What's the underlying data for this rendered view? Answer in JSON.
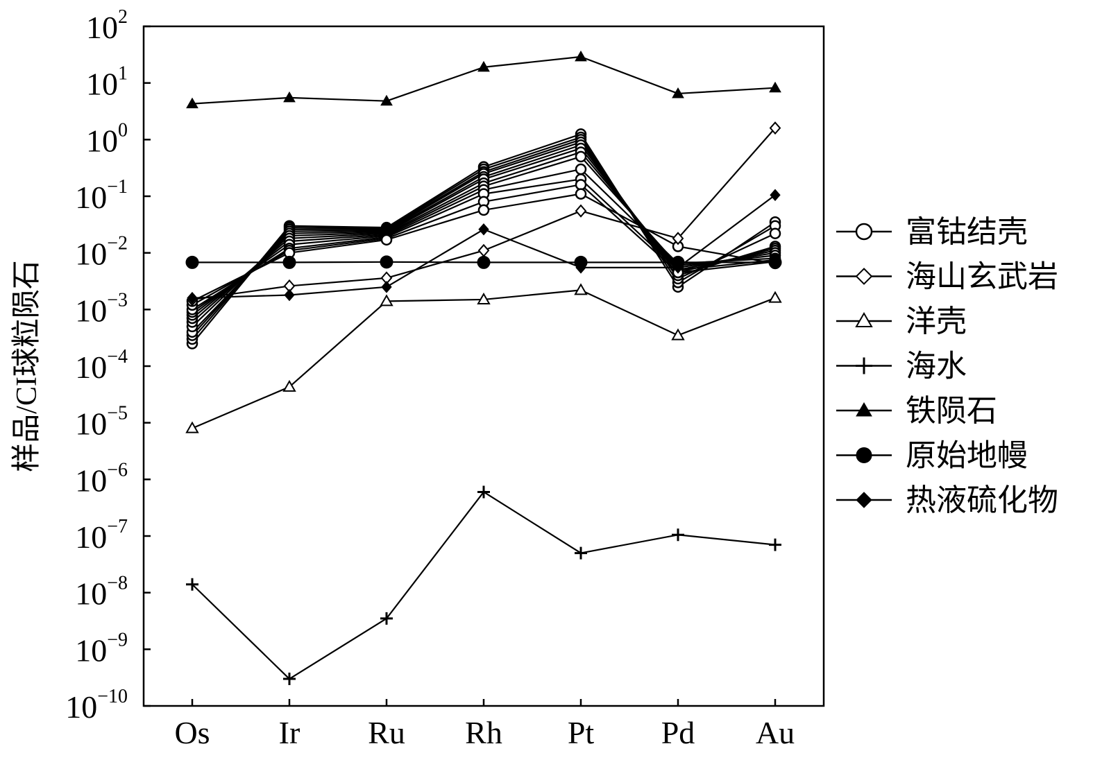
{
  "chart_data": {
    "type": "line",
    "categories": [
      "Os",
      "Ir",
      "Ru",
      "Rh",
      "Pt",
      "Pd",
      "Au"
    ],
    "ylabel": "样品/CI球粒陨石",
    "yscale": "log",
    "ylim": [
      1e-10,
      100
    ],
    "yticks": [
      {
        "base": "10",
        "exp": "2"
      },
      {
        "base": "10",
        "exp": "1"
      },
      {
        "base": "10",
        "exp": "0"
      },
      {
        "base": "10",
        "exp": "−1"
      },
      {
        "base": "10",
        "exp": "−2"
      },
      {
        "base": "10",
        "exp": "−3"
      },
      {
        "base": "10",
        "exp": "−4"
      },
      {
        "base": "10",
        "exp": "−5"
      },
      {
        "base": "10",
        "exp": "−6"
      },
      {
        "base": "10",
        "exp": "−7"
      },
      {
        "base": "10",
        "exp": "−8"
      },
      {
        "base": "10",
        "exp": "−9"
      },
      {
        "base": "10",
        "exp": "−10"
      }
    ],
    "grid": false,
    "legend_position": "right",
    "line_color": "#000000",
    "legend": [
      {
        "label": "富钴结壳",
        "marker": "open-circle"
      },
      {
        "label": "海山玄武岩",
        "marker": "open-diamond"
      },
      {
        "label": "洋壳",
        "marker": "open-triangle"
      },
      {
        "label": "海水",
        "marker": "plus"
      },
      {
        "label": "铁陨石",
        "marker": "filled-triangle"
      },
      {
        "label": "原始地幔",
        "marker": "filled-circle"
      },
      {
        "label": "热液硫化物",
        "marker": "filled-diamond"
      }
    ],
    "series": [
      {
        "group": "富钴结壳",
        "marker": "open-circle",
        "values": [
          0.00025,
          0.03,
          0.028,
          0.33,
          1.25,
          0.0025,
          0.035
        ]
      },
      {
        "group": "富钴结壳",
        "marker": "open-circle",
        "values": [
          0.0003,
          0.028,
          0.027,
          0.3,
          1.1,
          0.003,
          0.03
        ]
      },
      {
        "group": "富钴结壳",
        "marker": "open-circle",
        "values": [
          0.00035,
          0.026,
          0.026,
          0.27,
          1.0,
          0.0035,
          0.022
        ]
      },
      {
        "group": "富钴结壳",
        "marker": "open-circle",
        "values": [
          0.0004,
          0.024,
          0.025,
          0.25,
          0.9,
          0.004,
          0.013
        ]
      },
      {
        "group": "富钴结壳",
        "marker": "open-circle",
        "values": [
          0.0005,
          0.022,
          0.024,
          0.22,
          0.8,
          0.0045,
          0.012
        ]
      },
      {
        "group": "富钴结壳",
        "marker": "open-circle",
        "values": [
          0.0006,
          0.02,
          0.023,
          0.2,
          0.7,
          0.005,
          0.011
        ]
      },
      {
        "group": "富钴结壳",
        "marker": "open-circle",
        "values": [
          0.0007,
          0.018,
          0.022,
          0.17,
          0.6,
          0.0055,
          0.01
        ]
      },
      {
        "group": "富钴结壳",
        "marker": "open-circle",
        "values": [
          0.0008,
          0.016,
          0.021,
          0.15,
          0.5,
          0.006,
          0.009
        ]
      },
      {
        "group": "富钴结壳",
        "marker": "open-circle",
        "values": [
          0.0009,
          0.014,
          0.02,
          0.13,
          0.3,
          0.0065,
          0.008
        ]
      },
      {
        "group": "富钴结壳",
        "marker": "open-circle",
        "values": [
          0.001,
          0.012,
          0.019,
          0.11,
          0.2,
          0.005,
          0.0075
        ]
      },
      {
        "group": "富钴结壳",
        "marker": "open-circle",
        "values": [
          0.0012,
          0.011,
          0.018,
          0.08,
          0.16,
          0.0045,
          0.007
        ]
      },
      {
        "group": "富钴结壳",
        "marker": "open-circle",
        "values": [
          0.0014,
          0.01,
          0.017,
          0.057,
          0.11,
          0.013,
          0.0065
        ]
      },
      {
        "group": "海山玄武岩",
        "marker": "open-diamond",
        "values": [
          0.0015,
          0.0026,
          0.0036,
          0.011,
          0.055,
          0.018,
          1.6
        ]
      },
      {
        "group": "洋壳",
        "marker": "open-triangle",
        "values": [
          8e-06,
          4.3e-05,
          0.0014,
          0.0015,
          0.0022,
          0.00035,
          0.0016
        ]
      },
      {
        "group": "海水",
        "marker": "plus",
        "values": [
          1.4e-08,
          3e-10,
          3.5e-09,
          6e-07,
          5e-08,
          1.05e-07,
          7e-08
        ]
      },
      {
        "group": "铁陨石",
        "marker": "filled-triangle",
        "values": [
          4.3,
          5.5,
          4.8,
          19,
          29,
          6.5,
          8.2
        ]
      },
      {
        "group": "原始地幔",
        "marker": "filled-circle",
        "values": [
          0.0068,
          0.0068,
          0.0069,
          0.0068,
          0.0068,
          0.0068,
          0.0068
        ]
      },
      {
        "group": "热液硫化物",
        "marker": "filled-diamond",
        "values": [
          0.0016,
          0.0018,
          0.0025,
          0.026,
          0.0055,
          0.0055,
          0.105
        ]
      }
    ]
  }
}
